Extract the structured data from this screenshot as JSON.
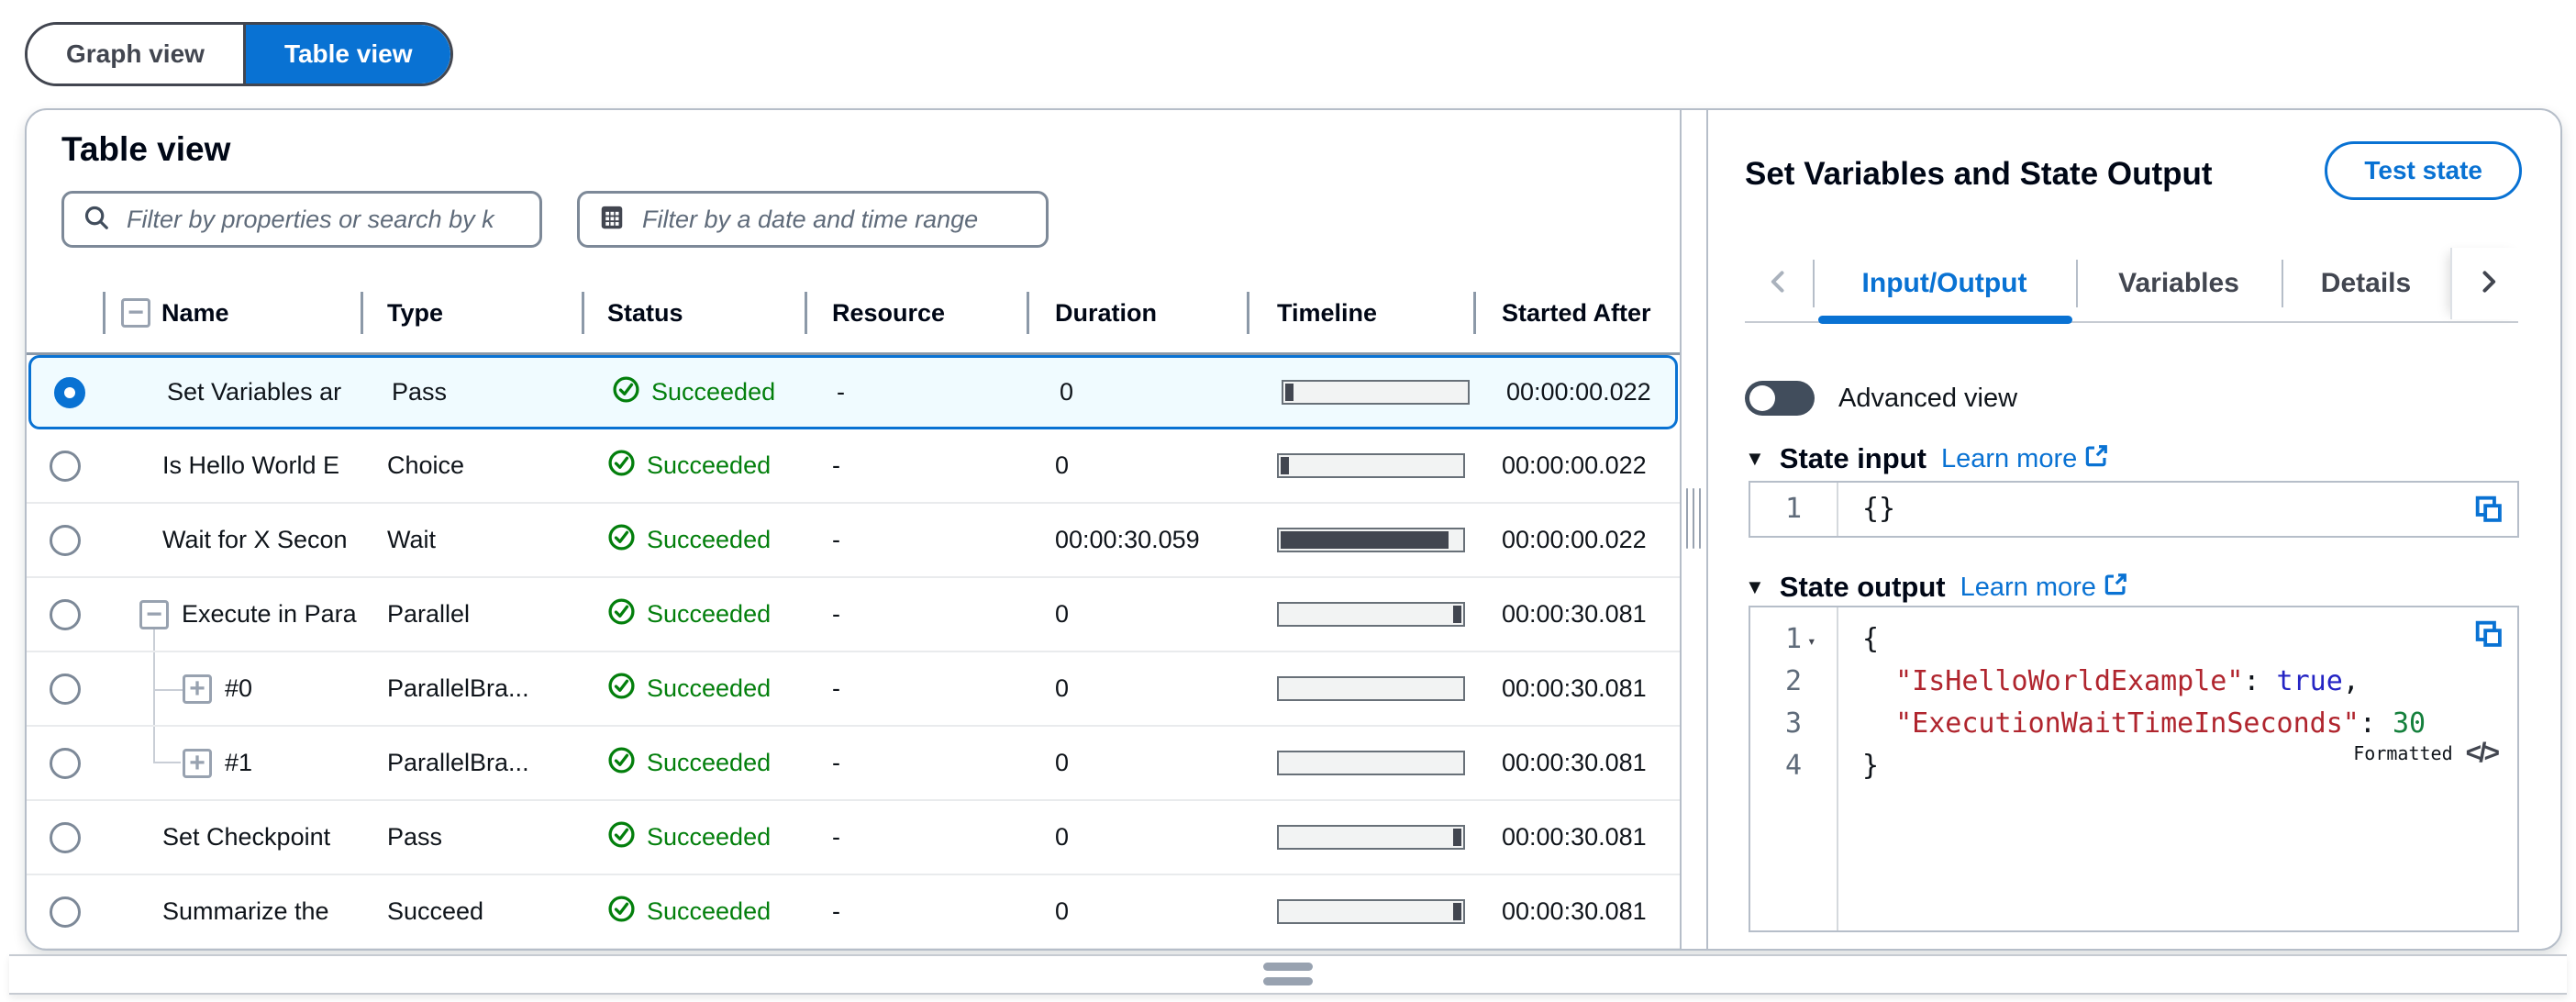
{
  "view_toggle": {
    "options": [
      {
        "label": "Graph view",
        "active": false
      },
      {
        "label": "Table view",
        "active": true
      }
    ]
  },
  "colors": {
    "accent": "#0972d3",
    "success": "#037f0c",
    "selected_row_bg": "#f0fbff"
  },
  "table_panel": {
    "title": "Table view",
    "filters": {
      "search_placeholder": "Filter by properties or search by k",
      "search_icon": "search-icon",
      "date_placeholder": "Filter by a date and time range",
      "date_icon": "calendar-icon"
    },
    "columns": [
      "Name",
      "Type",
      "Status",
      "Resource",
      "Duration",
      "Timeline",
      "Started After"
    ],
    "collapse_all_glyph": "−",
    "rows": [
      {
        "name": "Set Variables ar",
        "type": "Pass",
        "status": "Succeeded",
        "resource": "-",
        "duration": "0",
        "started_after": "00:00:00.022",
        "selected": true,
        "tree": "none",
        "timeline": "start"
      },
      {
        "name": "Is Hello World E",
        "type": "Choice",
        "status": "Succeeded",
        "resource": "-",
        "duration": "0",
        "started_after": "00:00:00.022",
        "selected": false,
        "tree": "none",
        "timeline": "start"
      },
      {
        "name": "Wait for X Secon",
        "type": "Wait",
        "status": "Succeeded",
        "resource": "-",
        "duration": "00:00:30.059",
        "started_after": "00:00:00.022",
        "selected": false,
        "tree": "none",
        "timeline": "full"
      },
      {
        "name": "Execute in Para",
        "type": "Parallel",
        "status": "Succeeded",
        "resource": "-",
        "duration": "0",
        "started_after": "00:00:30.081",
        "selected": false,
        "tree": "parent",
        "timeline": "end"
      },
      {
        "name": "#0",
        "type": "ParallelBra...",
        "status": "Succeeded",
        "resource": "-",
        "duration": "0",
        "started_after": "00:00:30.081",
        "selected": false,
        "tree": "child-mid",
        "timeline": "none"
      },
      {
        "name": "#1",
        "type": "ParallelBra...",
        "status": "Succeeded",
        "resource": "-",
        "duration": "0",
        "started_after": "00:00:30.081",
        "selected": false,
        "tree": "child-last",
        "timeline": "none"
      },
      {
        "name": "Set Checkpoint",
        "type": "Pass",
        "status": "Succeeded",
        "resource": "-",
        "duration": "0",
        "started_after": "00:00:30.081",
        "selected": false,
        "tree": "none",
        "timeline": "end"
      },
      {
        "name": "Summarize the",
        "type": "Succeed",
        "status": "Succeeded",
        "resource": "-",
        "duration": "0",
        "started_after": "00:00:30.081",
        "selected": false,
        "tree": "none",
        "timeline": "end"
      }
    ],
    "toggle_glyphs": {
      "collapse": "−",
      "expand": "+"
    }
  },
  "detail_panel": {
    "title": "Set Variables and State Output",
    "test_state_label": "Test state",
    "tabs": [
      {
        "label": "Input/Output",
        "active": true
      },
      {
        "label": "Variables",
        "active": false
      },
      {
        "label": "Details",
        "active": false
      }
    ],
    "advanced_view_label": "Advanced view",
    "state_input": {
      "caret": "▼",
      "heading": "State input",
      "learn_more_label": "Learn more",
      "lines": [
        {
          "num": "1",
          "fold": false,
          "tokens": [
            {
              "c": "p",
              "t": "{}"
            }
          ]
        }
      ]
    },
    "state_output": {
      "caret": "▼",
      "heading": "State output",
      "learn_more_label": "Learn more",
      "formatted_label": "Formatted",
      "formatted_icon": "</>",
      "fold_glyph": "▾",
      "lines": [
        {
          "num": "1",
          "fold": true,
          "tokens": [
            {
              "c": "p",
              "t": "{"
            }
          ]
        },
        {
          "num": "2",
          "fold": false,
          "tokens": [
            {
              "c": "key",
              "t": "  \"IsHelloWorldExample\""
            },
            {
              "c": "p",
              "t": ": "
            },
            {
              "c": "bool",
              "t": "true"
            },
            {
              "c": "p",
              "t": ","
            }
          ]
        },
        {
          "num": "3",
          "fold": false,
          "tokens": [
            {
              "c": "key",
              "t": "  \"ExecutionWaitTimeInSeconds\""
            },
            {
              "c": "p",
              "t": ": "
            },
            {
              "c": "num",
              "t": "30"
            }
          ]
        },
        {
          "num": "4",
          "fold": false,
          "tokens": [
            {
              "c": "p",
              "t": "}"
            }
          ]
        }
      ]
    }
  }
}
